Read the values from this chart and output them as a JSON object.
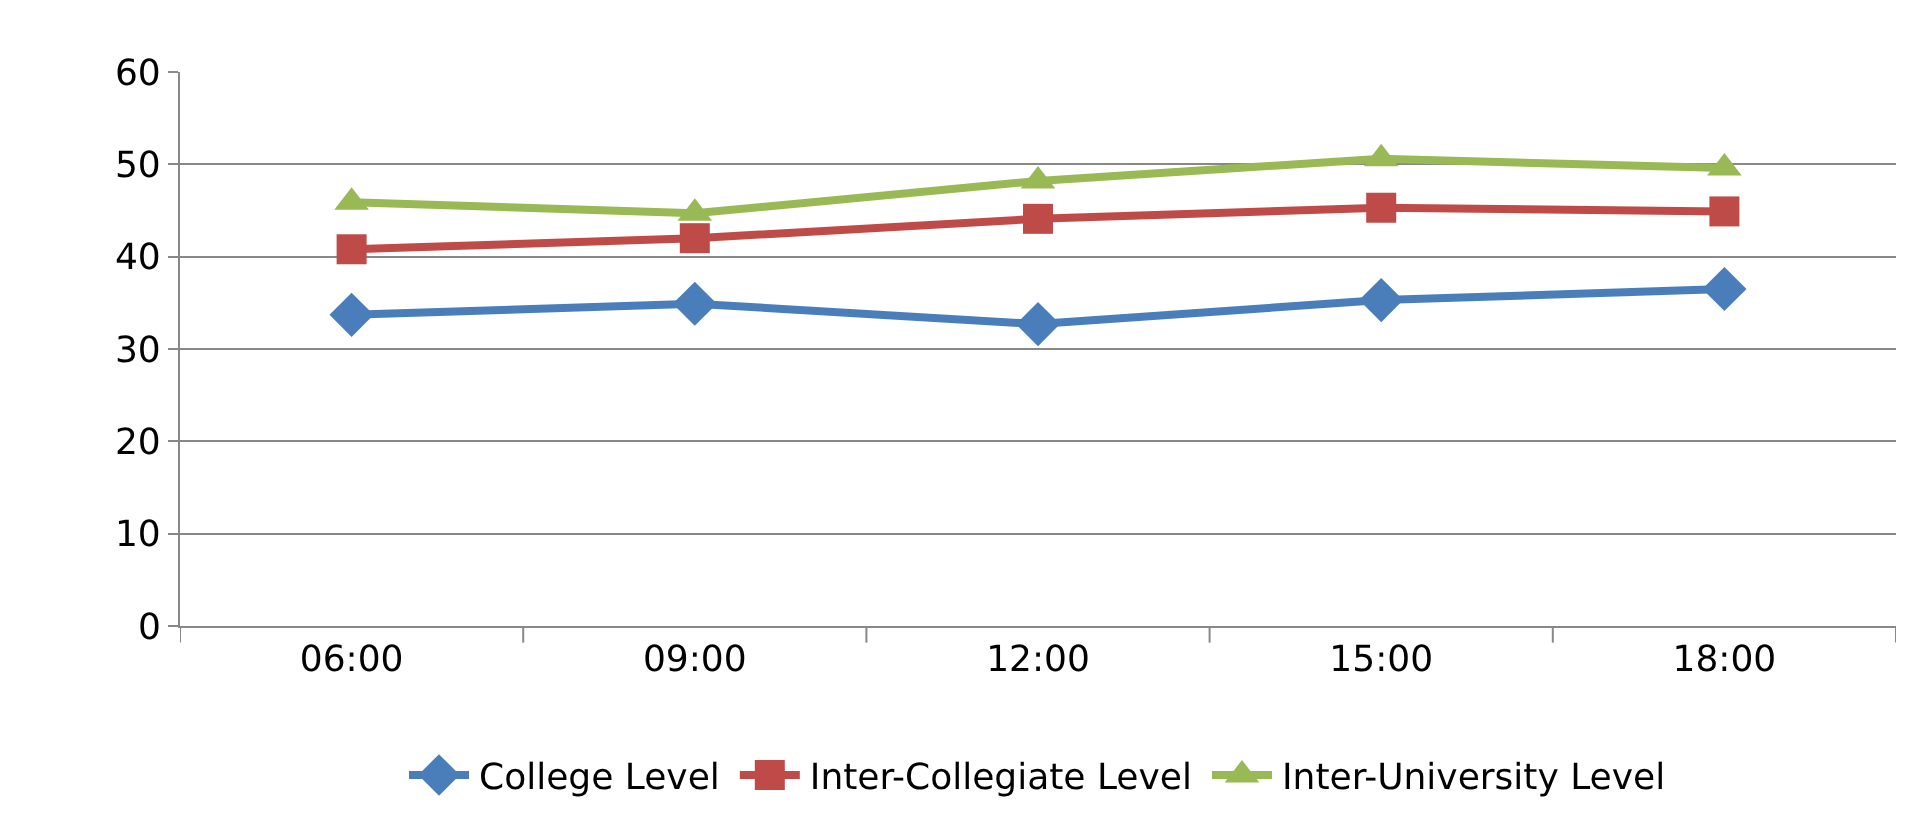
{
  "chart_data": {
    "type": "line",
    "categories": [
      "06:00",
      "09:00",
      "12:00",
      "15:00",
      "18:00"
    ],
    "series": [
      {
        "name": "College Level",
        "color": "#4a7ebb",
        "marker": "diamond",
        "values": [
          33.7,
          34.9,
          32.7,
          35.3,
          36.5
        ]
      },
      {
        "name": "Inter-Collegiate Level",
        "color": "#be4b48",
        "marker": "square",
        "values": [
          40.8,
          42.0,
          44.1,
          45.3,
          44.9
        ]
      },
      {
        "name": "Inter-University Level",
        "color": "#98b954",
        "marker": "triangle",
        "values": [
          45.9,
          44.7,
          48.2,
          50.6,
          49.6
        ]
      }
    ],
    "ylim": [
      0,
      60
    ],
    "yticks": [
      0,
      10,
      20,
      30,
      40,
      50,
      60
    ],
    "grid": "y",
    "legend": "bottom",
    "line_style": "solid"
  }
}
